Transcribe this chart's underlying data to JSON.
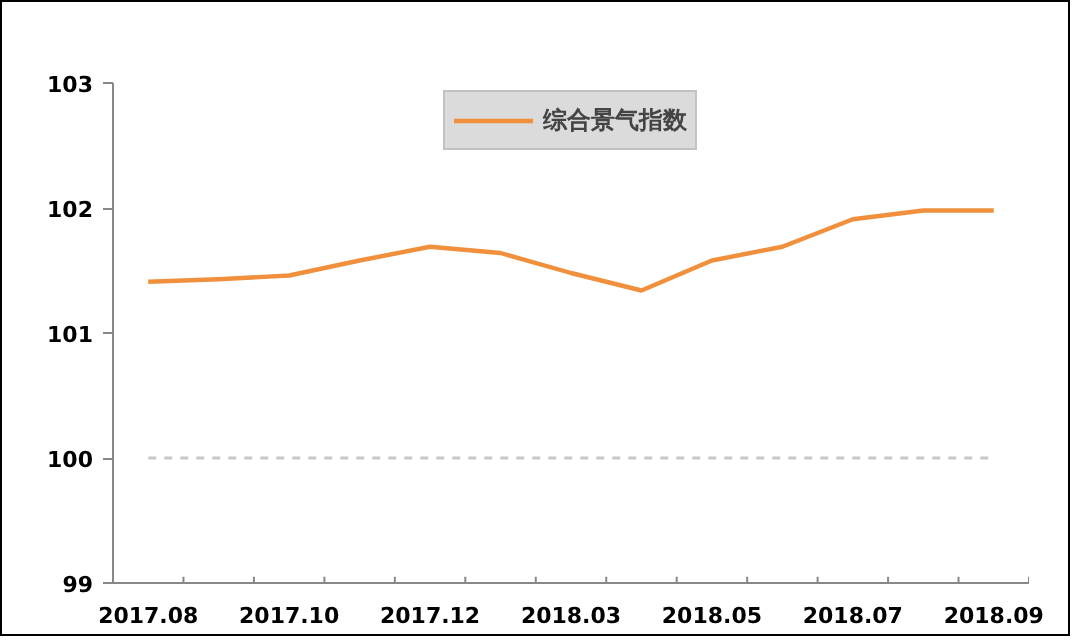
{
  "chart_data": {
    "type": "line",
    "categories": [
      "2017.08",
      null,
      "2017.10",
      null,
      "2017.12",
      null,
      "2018.03",
      null,
      "2018.05",
      null,
      "2018.07",
      null,
      "2018.09"
    ],
    "series": [
      {
        "name": "综合景气指数",
        "color": "#f0903c",
        "values": [
          101.41,
          101.43,
          101.46,
          101.58,
          101.69,
          101.64,
          101.48,
          101.34,
          101.58,
          101.69,
          101.91,
          101.98,
          101.98
        ]
      }
    ],
    "ylim": [
      99,
      103
    ],
    "yticks": [
      99,
      100,
      101,
      102,
      103
    ],
    "ref_lines": [
      {
        "axis": "y",
        "value": 100,
        "label": null,
        "color": "#c8c8c8",
        "line_style": "dashed"
      }
    ],
    "grid": false,
    "legend": "top",
    "marker": "none",
    "line_style": "solid"
  }
}
